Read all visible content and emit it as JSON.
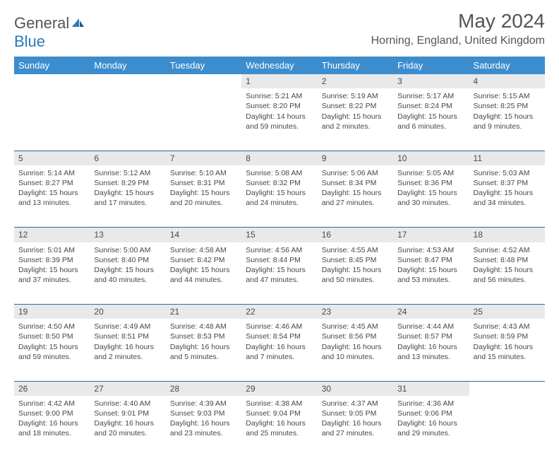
{
  "brand": {
    "part1": "General",
    "part2": "Blue"
  },
  "title": "May 2024",
  "location": "Horning, England, United Kingdom",
  "colors": {
    "header_bg": "#3c8dce",
    "header_text": "#ffffff",
    "daynum_bg": "#e7e9eb",
    "rule": "#2a6aa0",
    "body_text": "#474747",
    "title_text": "#555555",
    "brand_blue": "#2a7ab8"
  },
  "typography": {
    "title_fontsize": 28,
    "location_fontsize": 16,
    "dow_fontsize": 13,
    "daynum_fontsize": 12,
    "cell_fontsize": 10.5
  },
  "days_of_week": [
    "Sunday",
    "Monday",
    "Tuesday",
    "Wednesday",
    "Thursday",
    "Friday",
    "Saturday"
  ],
  "weeks": [
    [
      null,
      null,
      null,
      {
        "n": "1",
        "sunrise": "5:21 AM",
        "sunset": "8:20 PM",
        "daylight": "14 hours and 59 minutes."
      },
      {
        "n": "2",
        "sunrise": "5:19 AM",
        "sunset": "8:22 PM",
        "daylight": "15 hours and 2 minutes."
      },
      {
        "n": "3",
        "sunrise": "5:17 AM",
        "sunset": "8:24 PM",
        "daylight": "15 hours and 6 minutes."
      },
      {
        "n": "4",
        "sunrise": "5:15 AM",
        "sunset": "8:25 PM",
        "daylight": "15 hours and 9 minutes."
      }
    ],
    [
      {
        "n": "5",
        "sunrise": "5:14 AM",
        "sunset": "8:27 PM",
        "daylight": "15 hours and 13 minutes."
      },
      {
        "n": "6",
        "sunrise": "5:12 AM",
        "sunset": "8:29 PM",
        "daylight": "15 hours and 17 minutes."
      },
      {
        "n": "7",
        "sunrise": "5:10 AM",
        "sunset": "8:31 PM",
        "daylight": "15 hours and 20 minutes."
      },
      {
        "n": "8",
        "sunrise": "5:08 AM",
        "sunset": "8:32 PM",
        "daylight": "15 hours and 24 minutes."
      },
      {
        "n": "9",
        "sunrise": "5:06 AM",
        "sunset": "8:34 PM",
        "daylight": "15 hours and 27 minutes."
      },
      {
        "n": "10",
        "sunrise": "5:05 AM",
        "sunset": "8:36 PM",
        "daylight": "15 hours and 30 minutes."
      },
      {
        "n": "11",
        "sunrise": "5:03 AM",
        "sunset": "8:37 PM",
        "daylight": "15 hours and 34 minutes."
      }
    ],
    [
      {
        "n": "12",
        "sunrise": "5:01 AM",
        "sunset": "8:39 PM",
        "daylight": "15 hours and 37 minutes."
      },
      {
        "n": "13",
        "sunrise": "5:00 AM",
        "sunset": "8:40 PM",
        "daylight": "15 hours and 40 minutes."
      },
      {
        "n": "14",
        "sunrise": "4:58 AM",
        "sunset": "8:42 PM",
        "daylight": "15 hours and 44 minutes."
      },
      {
        "n": "15",
        "sunrise": "4:56 AM",
        "sunset": "8:44 PM",
        "daylight": "15 hours and 47 minutes."
      },
      {
        "n": "16",
        "sunrise": "4:55 AM",
        "sunset": "8:45 PM",
        "daylight": "15 hours and 50 minutes."
      },
      {
        "n": "17",
        "sunrise": "4:53 AM",
        "sunset": "8:47 PM",
        "daylight": "15 hours and 53 minutes."
      },
      {
        "n": "18",
        "sunrise": "4:52 AM",
        "sunset": "8:48 PM",
        "daylight": "15 hours and 56 minutes."
      }
    ],
    [
      {
        "n": "19",
        "sunrise": "4:50 AM",
        "sunset": "8:50 PM",
        "daylight": "15 hours and 59 minutes."
      },
      {
        "n": "20",
        "sunrise": "4:49 AM",
        "sunset": "8:51 PM",
        "daylight": "16 hours and 2 minutes."
      },
      {
        "n": "21",
        "sunrise": "4:48 AM",
        "sunset": "8:53 PM",
        "daylight": "16 hours and 5 minutes."
      },
      {
        "n": "22",
        "sunrise": "4:46 AM",
        "sunset": "8:54 PM",
        "daylight": "16 hours and 7 minutes."
      },
      {
        "n": "23",
        "sunrise": "4:45 AM",
        "sunset": "8:56 PM",
        "daylight": "16 hours and 10 minutes."
      },
      {
        "n": "24",
        "sunrise": "4:44 AM",
        "sunset": "8:57 PM",
        "daylight": "16 hours and 13 minutes."
      },
      {
        "n": "25",
        "sunrise": "4:43 AM",
        "sunset": "8:59 PM",
        "daylight": "16 hours and 15 minutes."
      }
    ],
    [
      {
        "n": "26",
        "sunrise": "4:42 AM",
        "sunset": "9:00 PM",
        "daylight": "16 hours and 18 minutes."
      },
      {
        "n": "27",
        "sunrise": "4:40 AM",
        "sunset": "9:01 PM",
        "daylight": "16 hours and 20 minutes."
      },
      {
        "n": "28",
        "sunrise": "4:39 AM",
        "sunset": "9:03 PM",
        "daylight": "16 hours and 23 minutes."
      },
      {
        "n": "29",
        "sunrise": "4:38 AM",
        "sunset": "9:04 PM",
        "daylight": "16 hours and 25 minutes."
      },
      {
        "n": "30",
        "sunrise": "4:37 AM",
        "sunset": "9:05 PM",
        "daylight": "16 hours and 27 minutes."
      },
      {
        "n": "31",
        "sunrise": "4:36 AM",
        "sunset": "9:06 PM",
        "daylight": "16 hours and 29 minutes."
      },
      null
    ]
  ],
  "labels": {
    "sunrise": "Sunrise:",
    "sunset": "Sunset:",
    "daylight": "Daylight:"
  }
}
